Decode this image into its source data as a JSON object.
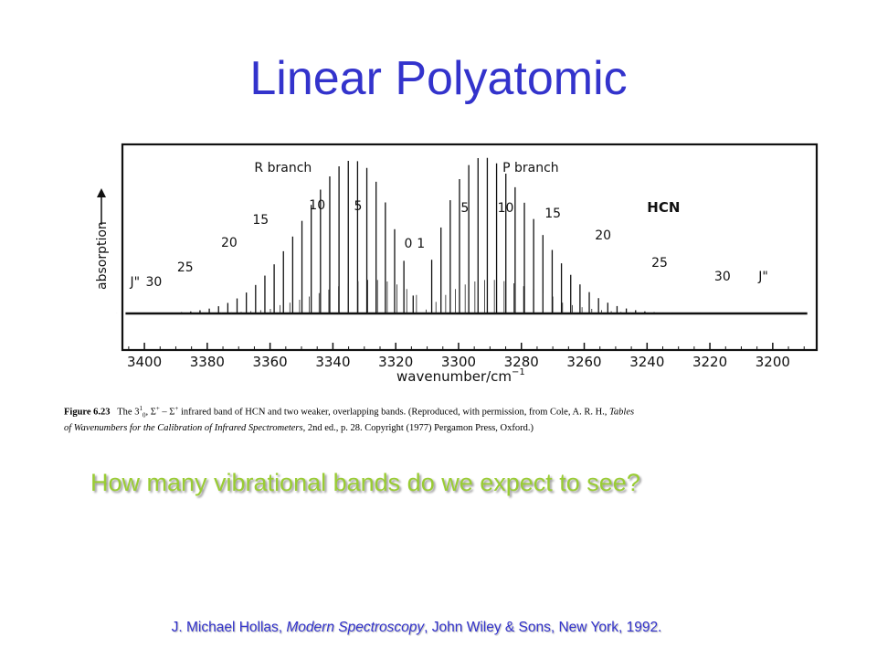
{
  "slide": {
    "title": "Linear Polyatomic",
    "question": "How many vibrational bands do we expect to see?",
    "reference": {
      "prefix": "J. Michael Hollas, ",
      "book": "Modern Spectroscopy",
      "suffix": ", John Wiley & Sons, New York, 1992."
    }
  },
  "caption": {
    "figure_label": "Figure 6.23",
    "line1_pre": "The 3",
    "superscript": "1",
    "subscript": "0",
    "line1_mid": ", Σ",
    "sup_plus1": "+",
    "dash": " – Σ",
    "sup_plus2": "+",
    "line1_post": " infrared band of HCN and two weaker, overlapping bands. (Reproduced, with permission, from Cole, A. R. H., ",
    "line1_ital": "Tables",
    "line2_ital": "of Wavenumbers for the Calibration of Infrared Spectrometers",
    "line2_post": ", 2nd ed., p. 28. Copyright (1977) Pergamon Press, Oxford.)"
  },
  "chart_data": {
    "type": "line",
    "xlabel": "wavenumber/cm",
    "xlabel_sup": "−1",
    "ylabel": "absorption",
    "x_reversed": true,
    "xlim": [
      3407,
      3186
    ],
    "x_ticks": [
      3400,
      3380,
      3360,
      3340,
      3320,
      3300,
      3280,
      3260,
      3240,
      3220,
      3200
    ],
    "molecule_label": "HCN",
    "branch_labels": [
      {
        "text": "R branch",
        "x": 3365
      },
      {
        "text": "P branch",
        "x": 3286
      }
    ],
    "j_labels": [
      {
        "text": "J\"",
        "x": 3403,
        "branch": "R"
      },
      {
        "text": "30",
        "x": 3397,
        "branch": "R"
      },
      {
        "text": "25",
        "x": 3387,
        "branch": "R"
      },
      {
        "text": "20",
        "x": 3373,
        "branch": "R"
      },
      {
        "text": "15",
        "x": 3363,
        "branch": "R"
      },
      {
        "text": "10",
        "x": 3345,
        "branch": "R"
      },
      {
        "text": "5",
        "x": 3332,
        "branch": "R"
      },
      {
        "text": "0",
        "x": 3316,
        "branch": "R"
      },
      {
        "text": "1",
        "x": 3312,
        "branch": "P"
      },
      {
        "text": "5",
        "x": 3298,
        "branch": "P"
      },
      {
        "text": "10",
        "x": 3285,
        "branch": "P"
      },
      {
        "text": "15",
        "x": 3270,
        "branch": "P"
      },
      {
        "text": "20",
        "x": 3254,
        "branch": "P"
      },
      {
        "text": "25",
        "x": 3236,
        "branch": "P"
      },
      {
        "text": "30",
        "x": 3216,
        "branch": "P"
      },
      {
        "text": "J\"",
        "x": 3203,
        "branch": "P"
      }
    ],
    "band_centre": 3311.5,
    "line_spacing": 2.95,
    "r_branch_max_J": 32,
    "p_branch_max_J": 34,
    "peak_J": 9,
    "relative_intensity_max": 1.0
  },
  "colors": {
    "title": "#3333cc",
    "question": "#99cc33",
    "reference": "#3333cc",
    "figure_ink": "#111111"
  }
}
